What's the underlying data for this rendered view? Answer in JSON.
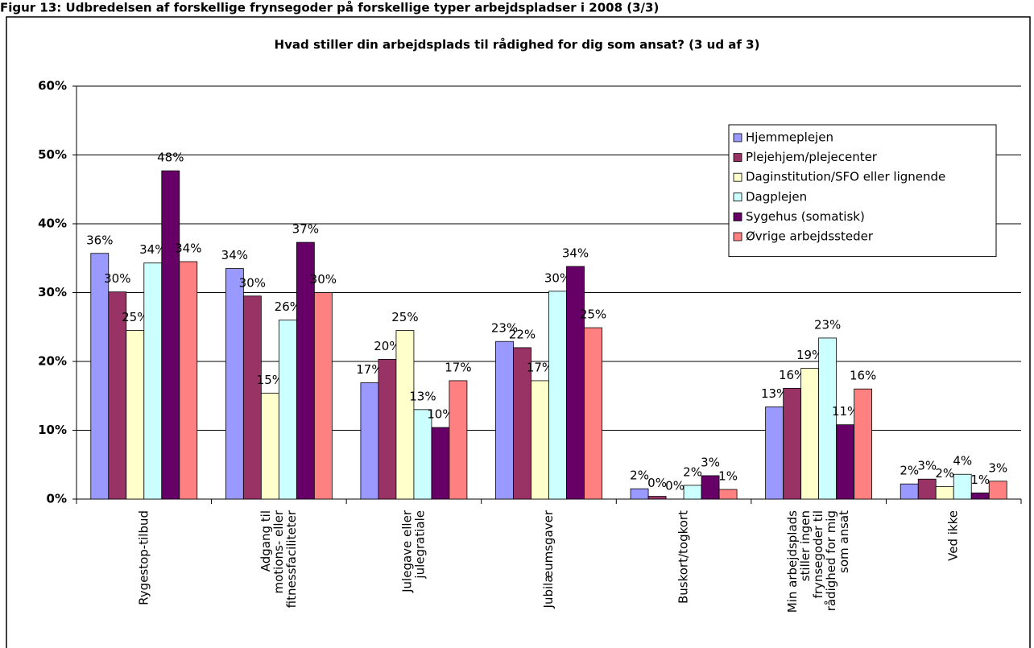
{
  "figure_caption": "Figur 13: Udbredelsen af forskellige frynsegoder på forskellige typer arbejdspladser i 2008 (3/3)",
  "chart_data": {
    "type": "bar",
    "title": "Hvad stiller din arbejdsplads til rådighed for dig som ansat? (3 ud af 3)",
    "categories": [
      "Rygestop-tilbud",
      "Adgang til\nmotions- eller\nfitnessfaciliteter",
      "Julegave eller\njulegratiale",
      "Jubilæumsgaver",
      "Buskort/togkort",
      "Min arbejdsplads\nstiller ingen\nfrynsegoder til\nrådighed for mig\nsom ansat",
      "Ved ikke"
    ],
    "series": [
      {
        "name": "Hjemmeplejen",
        "color": "#9999ff",
        "values": [
          35.7,
          33.5,
          16.9,
          22.9,
          1.5,
          13.4,
          2.2
        ],
        "value_labels": [
          "36%",
          "34%",
          "17%",
          "23%",
          "2%",
          "13%",
          "2%"
        ]
      },
      {
        "name": "Plejehjem/plejecenter",
        "color": "#993366",
        "values": [
          30.1,
          29.5,
          20.3,
          22.0,
          0.4,
          16.1,
          2.9
        ],
        "value_labels": [
          "30%",
          "30%",
          "20%",
          "22%",
          "0%",
          "16%",
          "3%"
        ]
      },
      {
        "name": "Daginstitution/SFO eller lignende",
        "color": "#ffffcc",
        "values": [
          24.5,
          15.4,
          24.5,
          17.2,
          0.0,
          19.0,
          1.8
        ],
        "value_labels": [
          "25%",
          "15%",
          "25%",
          "17%",
          "0%",
          "19%",
          "2%"
        ]
      },
      {
        "name": "Dagplejen",
        "color": "#ccffff",
        "values": [
          34.3,
          26.0,
          13.0,
          30.2,
          2.0,
          23.4,
          3.6
        ],
        "value_labels": [
          "34%",
          "26%",
          "13%",
          "30%",
          "2%",
          "23%",
          "4%"
        ]
      },
      {
        "name": "Sygehus (somatisk)",
        "color": "#660066",
        "values": [
          47.7,
          37.3,
          10.4,
          33.8,
          3.4,
          10.8,
          0.9
        ],
        "value_labels": [
          "48%",
          "37%",
          "10%",
          "34%",
          "3%",
          "11%",
          "1%"
        ]
      },
      {
        "name": "Øvrige arbejdssteder",
        "color": "#ff8080",
        "values": [
          34.5,
          30.0,
          17.2,
          24.9,
          1.4,
          16.0,
          2.6
        ],
        "value_labels": [
          "34%",
          "30%",
          "17%",
          "25%",
          "1%",
          "16%",
          "3%"
        ]
      }
    ],
    "ylim": [
      0,
      60
    ],
    "yticks": [
      {
        "value": 0,
        "label": "0%"
      },
      {
        "value": 10,
        "label": "10%"
      },
      {
        "value": 20,
        "label": "20%"
      },
      {
        "value": 30,
        "label": "30%"
      },
      {
        "value": 40,
        "label": "40%"
      },
      {
        "value": 50,
        "label": "50%"
      },
      {
        "value": 60,
        "label": "60%"
      }
    ],
    "grid": true,
    "legend": "upper right"
  }
}
